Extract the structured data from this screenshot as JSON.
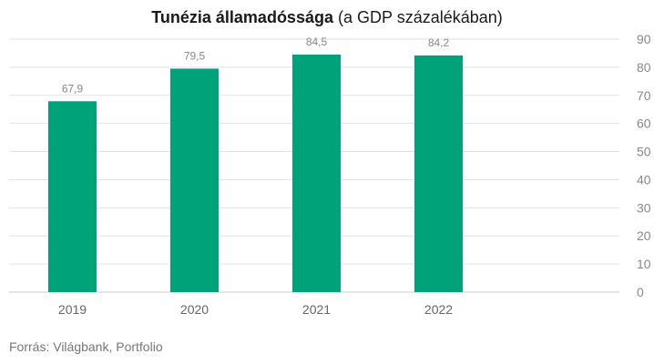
{
  "title_bold": "Tunézia államadóssága",
  "title_rest": "(a GDP százalékában)",
  "source": "Forrás: Világbank, Portfolio",
  "colors": {
    "bar": "#00a27a"
  },
  "chart_data": {
    "type": "bar",
    "title": "Tunézia államadóssága (a GDP százalékában)",
    "categories": [
      "2019",
      "2020",
      "2021",
      "2022"
    ],
    "values": [
      67.9,
      79.5,
      84.5,
      84.2
    ],
    "value_labels": [
      "67,9",
      "79,5",
      "84,5",
      "84,2"
    ],
    "ylim": [
      0,
      90
    ],
    "yticks": [
      0,
      10,
      20,
      30,
      40,
      50,
      60,
      70,
      80,
      90
    ],
    "yaxis_side": "right",
    "grid": true,
    "legend": "none"
  }
}
